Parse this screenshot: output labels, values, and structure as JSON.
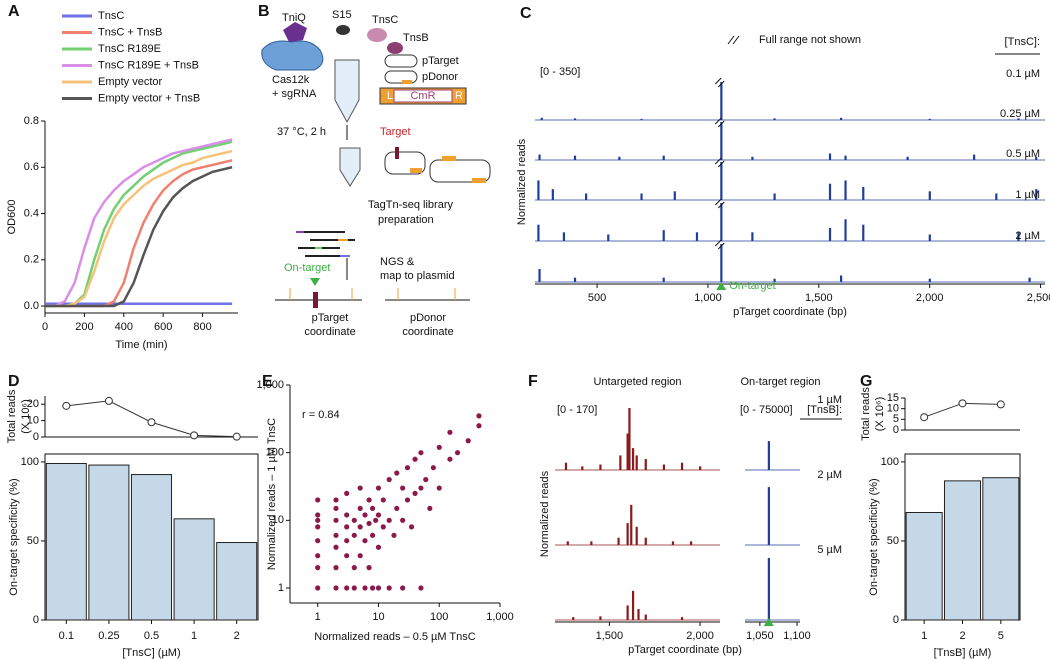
{
  "chart_data": [
    {
      "type": "line",
      "label": "A",
      "xlabel": "Time (min)",
      "ylabel": "OD600",
      "x": [
        0,
        50,
        100,
        150,
        200,
        250,
        300,
        350,
        400,
        450,
        500,
        550,
        600,
        650,
        700,
        750,
        800,
        850,
        900,
        950
      ],
      "xlim": [
        0,
        980
      ],
      "xticks": [
        0,
        200,
        400,
        600,
        800
      ],
      "ylim": [
        -0.03,
        0.8
      ],
      "yticks": [
        {
          "value": 0,
          "label": "0.0"
        },
        0.2,
        0.4,
        0.6,
        0.8
      ],
      "series": [
        {
          "name": "TnsC",
          "color": "#6f72e8",
          "values": [
            0.01,
            0.01,
            0.01,
            0.01,
            0.01,
            0.01,
            0.01,
            0.01,
            0.01,
            0.01,
            0.01,
            0.01,
            0.01,
            0.01,
            0.01,
            0.01,
            0.01,
            0.01,
            0.01,
            0.01
          ]
        },
        {
          "name": "TnsC + TnsB",
          "color": "#f08070",
          "values": [
            0,
            0,
            0,
            0,
            0,
            0,
            0,
            0.02,
            0.1,
            0.25,
            0.36,
            0.44,
            0.5,
            0.54,
            0.57,
            0.59,
            0.6,
            0.61,
            0.62,
            0.63
          ]
        },
        {
          "name": "TnsC R189E",
          "color": "#72d072",
          "values": [
            0,
            0,
            0,
            0.01,
            0.05,
            0.2,
            0.33,
            0.42,
            0.48,
            0.52,
            0.56,
            0.59,
            0.62,
            0.64,
            0.66,
            0.67,
            0.68,
            0.69,
            0.7,
            0.71
          ]
        },
        {
          "name": "TnsC R189E + TnsB",
          "color": "#d98ee8",
          "values": [
            0,
            0,
            0.02,
            0.1,
            0.25,
            0.38,
            0.45,
            0.5,
            0.54,
            0.57,
            0.6,
            0.62,
            0.64,
            0.66,
            0.67,
            0.68,
            0.69,
            0.7,
            0.71,
            0.72
          ]
        },
        {
          "name": "Empty vector",
          "color": "#f5c27a",
          "values": [
            0,
            0,
            0,
            0.01,
            0.04,
            0.15,
            0.28,
            0.38,
            0.44,
            0.48,
            0.52,
            0.55,
            0.57,
            0.59,
            0.61,
            0.62,
            0.64,
            0.65,
            0.66,
            0.67
          ]
        },
        {
          "name": "Empty vector + TnsB",
          "color": "#555555",
          "values": [
            0,
            0,
            0,
            0,
            0,
            0,
            0,
            0,
            0.02,
            0.1,
            0.22,
            0.33,
            0.41,
            0.47,
            0.51,
            0.54,
            0.56,
            0.58,
            0.59,
            0.6
          ]
        }
      ]
    },
    {
      "type": "dotline",
      "label": "D",
      "ylabel": [
        "Total reads",
        "(X 10⁶)"
      ],
      "values": [
        19,
        22,
        9,
        1,
        0.2
      ],
      "ylim": [
        0,
        25
      ],
      "yticks": [
        0,
        10,
        20
      ]
    },
    {
      "type": "bar",
      "ylabel": "On-target specificity (%)",
      "xlabel": "[TnsC] (µM)",
      "categories": [
        "0.1",
        "0.25",
        "0.5",
        "1",
        "2"
      ],
      "values": [
        99,
        98,
        92,
        64,
        49
      ],
      "color": "#c5d8e8",
      "ylim": [
        0,
        105
      ],
      "yticks": [
        0,
        50,
        100
      ]
    },
    {
      "type": "scatter",
      "label": "E",
      "annotation": "r = 0.84",
      "xlabel": "Normalized reads – 0.5 µM TnsC",
      "ylabel": "Normalized reads – 1 µM TnsC",
      "log": true,
      "color": "#8b1a4a",
      "xlim": [
        0.35,
        1000
      ],
      "ylim": [
        0.6,
        1000
      ],
      "xticks": [
        1,
        10,
        100,
        {
          "value": 1000,
          "label": "1,000"
        }
      ],
      "yticks": [
        1,
        10,
        100,
        {
          "value": 1000,
          "label": "1,000"
        }
      ],
      "x": [
        1,
        1,
        1,
        1,
        1,
        1,
        1,
        1,
        2,
        2,
        2,
        2,
        2,
        2,
        2,
        3,
        3,
        3,
        3,
        3,
        3,
        4,
        4,
        4,
        4,
        5,
        5,
        5,
        5,
        6,
        6,
        6,
        7,
        7,
        7,
        8,
        8,
        8,
        9,
        10,
        10,
        10,
        10,
        12,
        12,
        15,
        15,
        15,
        18,
        20,
        20,
        25,
        25,
        25,
        30,
        30,
        35,
        40,
        40,
        50,
        50,
        50,
        60,
        70,
        80,
        100,
        100,
        150,
        150,
        200,
        300,
        450,
        450
      ],
      "values": [
        1,
        2,
        3,
        5,
        8,
        10,
        12,
        20,
        1,
        2,
        4,
        6,
        10,
        15,
        20,
        1,
        3,
        5,
        8,
        12,
        25,
        1,
        2,
        6,
        10,
        3,
        8,
        15,
        30,
        1,
        5,
        12,
        2,
        9,
        20,
        1,
        6,
        15,
        10,
        1,
        4,
        12,
        30,
        8,
        20,
        1,
        10,
        40,
        6,
        15,
        50,
        1,
        10,
        30,
        20,
        60,
        8,
        25,
        80,
        1,
        30,
        100,
        40,
        15,
        60,
        30,
        120,
        80,
        200,
        100,
        150,
        350,
        250
      ]
    },
    {
      "type": "dotline",
      "label": "G",
      "ylabel": [
        "Total reads",
        "(X 10⁶)"
      ],
      "values": [
        6,
        12.5,
        12
      ],
      "ylim": [
        0,
        15
      ],
      "yticks": [
        0,
        5,
        10,
        15
      ]
    },
    {
      "type": "bar",
      "ylabel": "On-target specificity (%)",
      "xlabel": "[TnsB] (µM)",
      "categories": [
        "1",
        "2",
        "5"
      ],
      "values": [
        68,
        88,
        90
      ],
      "color": "#c5d8e8",
      "ylim": [
        0,
        105
      ],
      "yticks": [
        0,
        50,
        100
      ]
    },
    {
      "type": "tracks",
      "label": "C",
      "range_label": "[0 - 350]",
      "note": "Full range not shown",
      "legend_title": "[TnsC]:",
      "annotation": "On-target",
      "ylabel": "Normalized reads",
      "xlabel": "pTarget coordinate (bp)",
      "xlim": [
        220,
        2520
      ],
      "xticks": [
        500,
        {
          "value": 1000,
          "label": "1,000"
        },
        {
          "value": 1500,
          "label": "1,500"
        },
        {
          "value": 2000,
          "label": "2,000"
        },
        {
          "value": 2500,
          "label": "2,500"
        }
      ],
      "ylim": [
        0,
        350
      ],
      "color": "#1f3d9c",
      "series": [
        {
          "name": "0.1 µM",
          "x": [
            250,
            400,
            700,
            1060,
            1300,
            1600,
            2000,
            2400
          ],
          "values": [
            20,
            15,
            10,
            350,
            15,
            20,
            10,
            15
          ]
        },
        {
          "name": "0.25 µM",
          "x": [
            240,
            400,
            600,
            800,
            1060,
            1200,
            1550,
            1620,
            1900,
            2200,
            2480
          ],
          "values": [
            50,
            40,
            30,
            40,
            350,
            30,
            60,
            40,
            30,
            50,
            30
          ]
        },
        {
          "name": "0.5 µM",
          "x": [
            235,
            300,
            450,
            700,
            850,
            1060,
            1300,
            1550,
            1620,
            1700,
            2000,
            2300,
            2480
          ],
          "values": [
            180,
            100,
            60,
            60,
            80,
            350,
            60,
            150,
            180,
            120,
            80,
            60,
            100
          ]
        },
        {
          "name": "1 µM",
          "x": [
            235,
            350,
            550,
            800,
            950,
            1060,
            1200,
            1550,
            1620,
            1700,
            2000,
            2400
          ],
          "values": [
            150,
            80,
            60,
            100,
            80,
            350,
            80,
            120,
            200,
            150,
            60,
            80
          ]
        },
        {
          "name": "2 µM",
          "x": [
            240,
            400,
            800,
            1060,
            1300,
            1600,
            2000,
            2450
          ],
          "values": [
            120,
            40,
            40,
            350,
            30,
            60,
            30,
            40
          ]
        }
      ]
    },
    {
      "type": "tracks",
      "label": "F",
      "title": "Untargeted region",
      "range_label": "[0 - 170]",
      "ylabel": "Normalized reads",
      "xlabel": "pTarget coordinate (bp)",
      "xlim": [
        1200,
        2110
      ],
      "xticks": [
        {
          "value": 1500,
          "label": "1,500"
        },
        {
          "value": 2000,
          "label": "2,000"
        }
      ],
      "ylim": [
        0,
        170
      ],
      "color": "#8b1a1a",
      "series": [
        {
          "x": [
            1260,
            1350,
            1450,
            1560,
            1600,
            1610,
            1630,
            1650,
            1700,
            1800,
            1900,
            2000
          ],
          "values": [
            20,
            10,
            15,
            40,
            100,
            170,
            60,
            40,
            30,
            15,
            20,
            10
          ]
        },
        {
          "x": [
            1270,
            1400,
            1550,
            1600,
            1620,
            1650,
            1700,
            1850,
            1950
          ],
          "values": [
            10,
            10,
            20,
            60,
            110,
            50,
            20,
            10,
            10
          ]
        },
        {
          "x": [
            1300,
            1450,
            1600,
            1630,
            1660,
            1700,
            1900
          ],
          "values": [
            8,
            10,
            40,
            80,
            30,
            15,
            8
          ]
        }
      ]
    },
    {
      "type": "tracks",
      "title": "On-target region",
      "range_label": "[0 - 75000]",
      "legend_title": "[TnsB]:",
      "xlim": [
        1030,
        1104
      ],
      "xticks": [
        {
          "value": 1050,
          "label": "1,050"
        },
        {
          "value": 1100,
          "label": "1,100"
        }
      ],
      "ylim": [
        0,
        75000
      ],
      "color": "#1f3d9c",
      "series": [
        {
          "name": "1 µM",
          "x": [
            1062
          ],
          "values": [
            35000
          ]
        },
        {
          "name": "2 µM",
          "x": [
            1062
          ],
          "values": [
            70000
          ]
        },
        {
          "name": "5 µM",
          "x": [
            1062
          ],
          "values": [
            75000
          ]
        }
      ]
    }
  ],
  "diagram": {
    "label": "B",
    "proteins": [
      "TniQ",
      "S15",
      "TnsC",
      "TnsB"
    ],
    "cas": "Cas12k",
    "sgrna": "+ sgRNA",
    "ptarget": "pTarget",
    "pdonor": "pDonor",
    "cassette": [
      "L",
      "CmR",
      "R"
    ],
    "step1": "37 °C, 2 h",
    "target": "Target",
    "step2": [
      "TagTn-seq library",
      "preparation"
    ],
    "step3": [
      "NGS &",
      "map to plasmid"
    ],
    "on_target": "On-target",
    "axis1": [
      "pTarget",
      "coordinate"
    ],
    "axis2": [
      "pDonor",
      "coordinate"
    ]
  }
}
